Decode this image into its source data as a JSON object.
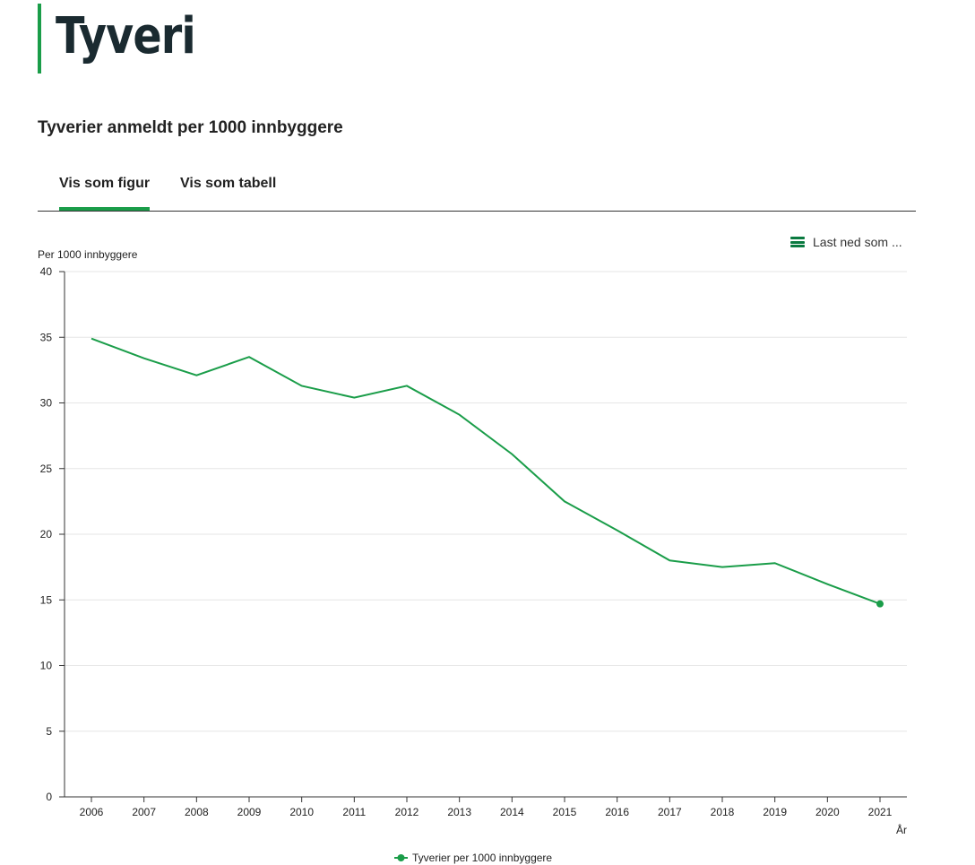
{
  "header": {
    "title": "Tyveri"
  },
  "section": {
    "title": "Tyverier anmeldt per 1000 innbyggere"
  },
  "tabs": [
    {
      "label": "Vis som figur",
      "active": true
    },
    {
      "label": "Vis som tabell",
      "active": false
    }
  ],
  "download": {
    "label": "Last ned som ...",
    "icon": "menu-icon"
  },
  "colors": {
    "accent": "#1a9d49"
  },
  "chart_data": {
    "type": "line",
    "ylabel": "Per 1000 innbyggere",
    "xlabel": "År",
    "ylim": [
      0,
      40
    ],
    "yticks": [
      0,
      5,
      10,
      15,
      20,
      25,
      30,
      35,
      40
    ],
    "categories": [
      "2006",
      "2007",
      "2008",
      "2009",
      "2010",
      "2011",
      "2012",
      "2013",
      "2014",
      "2015",
      "2016",
      "2017",
      "2018",
      "2019",
      "2020",
      "2021"
    ],
    "series": [
      {
        "name": "Tyverier per 1000 innbyggere",
        "values": [
          34.9,
          33.4,
          32.1,
          33.5,
          31.3,
          30.4,
          31.3,
          29.1,
          26.1,
          22.5,
          20.3,
          18.0,
          17.5,
          17.8,
          16.2,
          14.7
        ]
      }
    ],
    "grid": true,
    "legend": "bottom-center"
  }
}
